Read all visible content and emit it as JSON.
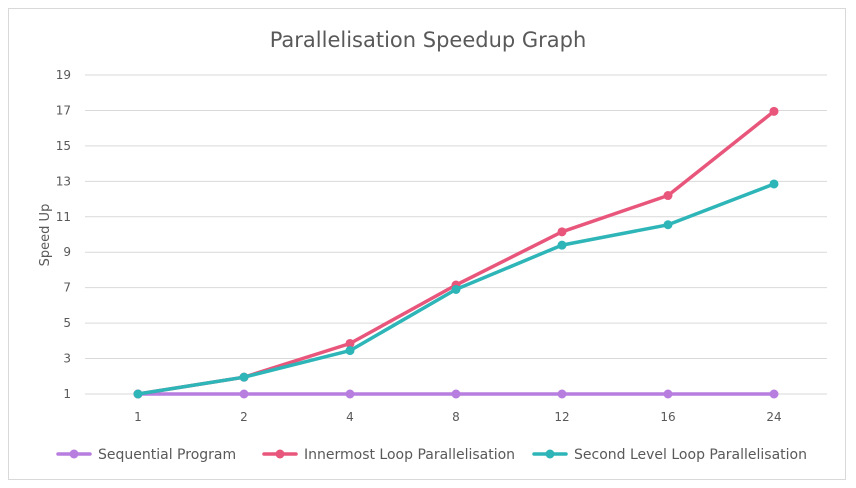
{
  "chart_data": {
    "type": "line",
    "title": "Parallelisation Speedup Graph",
    "xlabel": "",
    "ylabel": "Speed Up",
    "categories": [
      "1",
      "2",
      "4",
      "8",
      "12",
      "16",
      "24"
    ],
    "yticks": [
      1,
      3,
      5,
      7,
      9,
      11,
      13,
      15,
      17,
      19
    ],
    "ylim": [
      1,
      19
    ],
    "grid": true,
    "legend_position": "bottom",
    "series": [
      {
        "name": "Sequential Program",
        "color": "#b77ee0",
        "values": [
          1,
          1,
          1,
          1,
          1,
          1,
          1
        ]
      },
      {
        "name": "Innermost Loop Parallelisation",
        "color": "#e8567c",
        "values": [
          1,
          1.95,
          3.85,
          7.15,
          10.15,
          12.2,
          16.95
        ]
      },
      {
        "name": "Second Level Loop Parallelisation",
        "color": "#2eb5b8",
        "values": [
          1,
          1.95,
          3.45,
          6.9,
          9.4,
          10.55,
          12.85
        ]
      }
    ]
  }
}
